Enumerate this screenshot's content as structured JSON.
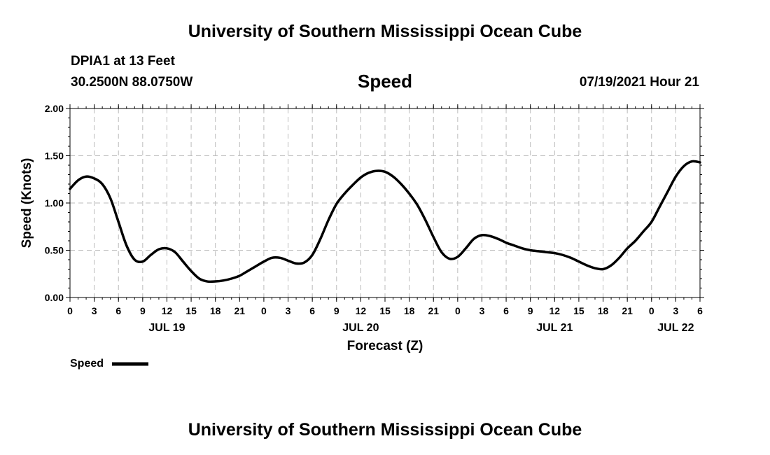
{
  "header": {
    "title": "University of Southern Mississippi Ocean Cube",
    "station": "DPIA1 at 13 Feet",
    "coords": "30.2500N  88.0750W",
    "datetime": "07/19/2021 Hour 21"
  },
  "footer": {
    "title": "University of Southern Mississippi Ocean Cube"
  },
  "chart_data": {
    "type": "line",
    "title": "Speed",
    "xlabel": "Forecast (Z)",
    "ylabel": "Speed (Knots)",
    "ylim": [
      0,
      2
    ],
    "yticks": [
      "0.00",
      "0.50",
      "1.00",
      "1.50",
      "2.00"
    ],
    "xlim_hours": [
      0,
      78
    ],
    "xtick_hours": [
      0,
      3,
      6,
      9,
      12,
      15,
      18,
      21,
      24,
      27,
      30,
      33,
      36,
      39,
      42,
      45,
      48,
      51,
      54,
      57,
      60,
      63,
      66,
      69,
      72,
      75,
      78
    ],
    "xtick_labels": [
      "0",
      "3",
      "6",
      "9",
      "12",
      "15",
      "18",
      "21",
      "0",
      "3",
      "6",
      "9",
      "12",
      "15",
      "18",
      "21",
      "0",
      "3",
      "6",
      "9",
      "12",
      "15",
      "18",
      "21",
      "0",
      "3",
      "6"
    ],
    "day_labels": [
      {
        "hour": 12,
        "label": "JUL 19"
      },
      {
        "hour": 36,
        "label": "JUL 20"
      },
      {
        "hour": 60,
        "label": "JUL 21"
      },
      {
        "hour": 75,
        "label": "JUL 22"
      }
    ],
    "grid": true,
    "legend": "bottom-left",
    "series": [
      {
        "name": "Speed",
        "color": "#000000",
        "x": [
          0,
          1,
          2,
          3,
          4,
          5,
          6,
          7,
          8,
          9,
          10,
          11,
          12,
          13,
          14,
          15,
          16,
          17,
          18,
          19,
          20,
          21,
          22,
          23,
          24,
          25,
          26,
          27,
          28,
          29,
          30,
          31,
          32,
          33,
          34,
          35,
          36,
          37,
          38,
          39,
          40,
          41,
          42,
          43,
          44,
          45,
          46,
          47,
          48,
          49,
          50,
          51,
          52,
          53,
          54,
          55,
          56,
          57,
          58,
          59,
          60,
          61,
          62,
          63,
          64,
          65,
          66,
          67,
          68,
          69,
          70,
          71,
          72,
          73,
          74,
          75,
          76,
          77,
          78
        ],
        "values": [
          1.15,
          1.24,
          1.28,
          1.26,
          1.2,
          1.05,
          0.8,
          0.55,
          0.4,
          0.38,
          0.45,
          0.51,
          0.52,
          0.48,
          0.38,
          0.28,
          0.2,
          0.17,
          0.17,
          0.18,
          0.2,
          0.23,
          0.28,
          0.33,
          0.38,
          0.42,
          0.42,
          0.39,
          0.36,
          0.37,
          0.45,
          0.62,
          0.82,
          0.99,
          1.1,
          1.19,
          1.27,
          1.32,
          1.34,
          1.33,
          1.28,
          1.2,
          1.1,
          0.98,
          0.82,
          0.64,
          0.48,
          0.41,
          0.43,
          0.52,
          0.62,
          0.66,
          0.65,
          0.62,
          0.58,
          0.55,
          0.52,
          0.5,
          0.49,
          0.48,
          0.47,
          0.45,
          0.42,
          0.38,
          0.34,
          0.31,
          0.3,
          0.34,
          0.42,
          0.52,
          0.6,
          0.7,
          0.8,
          0.96,
          1.12,
          1.28,
          1.39,
          1.44,
          1.43
        ]
      }
    ]
  }
}
